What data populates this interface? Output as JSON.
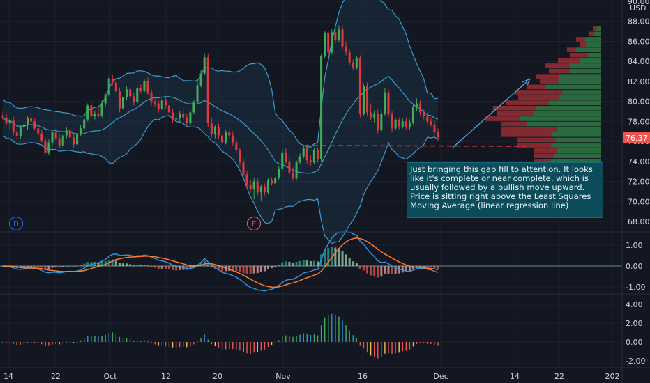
{
  "symbol_currency": "USD",
  "last_price_label": "76.37",
  "annotation_text": "Just bringing this gap fill to attention. It looks like it's complete or near complete, which is usually followed by a bullish move upward. Price is sitting right above the Least Squares Moving Average (linear regression line)",
  "badges": {
    "d": "D",
    "e": "E"
  },
  "colors": {
    "background": "#131722",
    "up": "#26a69a",
    "up_candle": "#3fae56",
    "down": "#ef5350",
    "down_candle": "#e0393c",
    "bands": "#3c9ccd",
    "macd": "#2f8fd9",
    "signal": "#ff7a2a",
    "annotation_bg": "#0b4b5a",
    "support_line": "#e53935",
    "arrow": "#4fb3e6"
  },
  "chart_data": [
    {
      "type": "candlestick",
      "title": "",
      "ylabel": "USD",
      "ylim": [
        67.5,
        90
      ],
      "y_ticks": [
        "68.00",
        "70.00",
        "72.00",
        "74.00",
        "76.00",
        "78.00",
        "80.00",
        "82.00",
        "84.00",
        "86.00",
        "88.00",
        "90.00"
      ],
      "x_ticks": [
        "14",
        "22",
        "Oct",
        "12",
        "20",
        "Nov",
        "16",
        "Dec",
        "14",
        "22",
        "202"
      ],
      "last_value": 76.37,
      "horizontal_level": 75.5,
      "candles": [
        [
          78.6,
          79.0,
          78.1,
          78.4
        ],
        [
          78.4,
          78.8,
          77.6,
          77.8
        ],
        [
          77.8,
          78.3,
          77.2,
          78.1
        ],
        [
          78.1,
          78.5,
          76.6,
          76.9
        ],
        [
          76.9,
          77.3,
          76.2,
          76.5
        ],
        [
          76.5,
          77.6,
          76.3,
          77.4
        ],
        [
          77.4,
          78.1,
          77.0,
          77.7
        ],
        [
          77.7,
          78.5,
          77.2,
          78.3
        ],
        [
          78.3,
          78.8,
          77.8,
          78.0
        ],
        [
          78.0,
          78.3,
          77.1,
          77.3
        ],
        [
          77.3,
          77.7,
          76.6,
          76.8
        ],
        [
          76.8,
          77.2,
          75.9,
          76.1
        ],
        [
          76.1,
          76.4,
          74.6,
          74.9
        ],
        [
          74.9,
          76.2,
          74.6,
          75.9
        ],
        [
          75.9,
          77.1,
          75.6,
          76.9
        ],
        [
          76.9,
          77.3,
          76.0,
          76.3
        ],
        [
          76.3,
          76.7,
          75.3,
          75.6
        ],
        [
          75.6,
          76.8,
          75.4,
          76.6
        ],
        [
          76.6,
          77.4,
          76.3,
          77.1
        ],
        [
          77.1,
          77.5,
          76.2,
          76.4
        ],
        [
          76.4,
          76.8,
          75.4,
          75.7
        ],
        [
          75.7,
          76.9,
          75.5,
          76.7
        ],
        [
          76.7,
          77.6,
          76.5,
          77.3
        ],
        [
          77.3,
          78.4,
          77.1,
          78.2
        ],
        [
          78.2,
          79.8,
          78.0,
          79.6
        ],
        [
          79.6,
          79.9,
          78.3,
          78.5
        ],
        [
          78.5,
          79.1,
          78.2,
          78.8
        ],
        [
          78.8,
          79.4,
          78.3,
          78.6
        ],
        [
          78.6,
          80.1,
          78.4,
          79.8
        ],
        [
          79.8,
          80.9,
          79.5,
          80.6
        ],
        [
          80.6,
          82.6,
          80.4,
          82.3
        ],
        [
          82.3,
          82.7,
          81.6,
          81.9
        ],
        [
          81.9,
          82.3,
          80.6,
          81.0
        ],
        [
          81.0,
          81.4,
          78.9,
          79.3
        ],
        [
          79.3,
          80.7,
          79.1,
          80.4
        ],
        [
          80.4,
          81.5,
          80.1,
          81.2
        ],
        [
          81.2,
          81.6,
          80.2,
          80.5
        ],
        [
          80.5,
          80.9,
          79.6,
          79.9
        ],
        [
          79.9,
          81.6,
          79.7,
          81.3
        ],
        [
          81.3,
          81.7,
          80.8,
          81.1
        ],
        [
          81.1,
          82.3,
          80.9,
          82.0
        ],
        [
          82.0,
          82.4,
          80.6,
          80.9
        ],
        [
          80.9,
          81.2,
          79.6,
          79.9
        ],
        [
          79.9,
          80.3,
          79.5,
          79.8
        ],
        [
          79.8,
          80.1,
          78.9,
          79.2
        ],
        [
          79.2,
          80.3,
          79.0,
          80.1
        ],
        [
          80.1,
          80.4,
          79.3,
          79.6
        ],
        [
          79.6,
          80.0,
          78.6,
          78.9
        ],
        [
          78.9,
          79.3,
          77.9,
          78.2
        ],
        [
          78.2,
          78.7,
          77.6,
          78.3
        ],
        [
          78.3,
          79.0,
          77.9,
          78.8
        ],
        [
          78.8,
          79.2,
          78.1,
          78.4
        ],
        [
          78.4,
          78.8,
          77.5,
          77.8
        ],
        [
          77.8,
          79.1,
          77.6,
          78.9
        ],
        [
          78.9,
          80.1,
          78.7,
          79.9
        ],
        [
          79.9,
          82.0,
          79.7,
          81.6
        ],
        [
          81.6,
          83.1,
          81.4,
          82.8
        ],
        [
          82.8,
          84.8,
          82.6,
          84.4
        ],
        [
          84.4,
          84.8,
          77.4,
          77.8
        ],
        [
          77.8,
          78.3,
          76.4,
          76.7
        ],
        [
          76.7,
          77.6,
          76.3,
          77.4
        ],
        [
          77.4,
          77.8,
          76.3,
          76.6
        ],
        [
          76.6,
          77.2,
          75.6,
          75.9
        ],
        [
          75.9,
          77.1,
          75.7,
          76.9
        ],
        [
          76.9,
          77.4,
          76.3,
          76.6
        ],
        [
          76.6,
          77.0,
          75.6,
          75.9
        ],
        [
          75.9,
          76.3,
          74.8,
          75.1
        ],
        [
          75.1,
          75.4,
          73.6,
          73.9
        ],
        [
          73.9,
          74.3,
          72.4,
          72.7
        ],
        [
          72.7,
          73.1,
          71.3,
          71.7
        ],
        [
          71.7,
          72.1,
          70.9,
          71.2
        ],
        [
          71.2,
          72.3,
          70.2,
          72.0
        ],
        [
          72.0,
          72.3,
          70.6,
          70.9
        ],
        [
          70.9,
          71.7,
          70.1,
          71.5
        ],
        [
          71.5,
          71.8,
          70.6,
          70.9
        ],
        [
          70.9,
          72.3,
          70.7,
          72.1
        ],
        [
          72.1,
          72.4,
          71.6,
          71.8
        ],
        [
          71.8,
          72.6,
          71.6,
          72.4
        ],
        [
          72.4,
          73.5,
          72.2,
          73.3
        ],
        [
          73.3,
          75.2,
          73.1,
          74.9
        ],
        [
          74.9,
          75.3,
          73.7,
          74.0
        ],
        [
          74.0,
          74.4,
          72.6,
          72.9
        ],
        [
          72.9,
          73.4,
          72.1,
          72.3
        ],
        [
          72.3,
          74.1,
          72.1,
          73.9
        ],
        [
          73.9,
          74.8,
          73.7,
          74.5
        ],
        [
          74.5,
          75.6,
          74.3,
          75.3
        ],
        [
          75.3,
          75.7,
          73.7,
          74.1
        ],
        [
          74.1,
          74.6,
          73.5,
          73.9
        ],
        [
          73.9,
          75.3,
          73.7,
          75.1
        ],
        [
          75.1,
          75.4,
          73.9,
          74.2
        ],
        [
          74.2,
          84.7,
          74.0,
          84.5
        ],
        [
          84.5,
          87.0,
          84.3,
          86.8
        ],
        [
          86.8,
          87.1,
          84.6,
          84.9
        ],
        [
          84.9,
          87.2,
          84.7,
          86.9
        ],
        [
          86.9,
          87.5,
          85.8,
          86.1
        ],
        [
          86.1,
          87.6,
          85.9,
          87.2
        ],
        [
          87.2,
          87.6,
          85.2,
          85.5
        ],
        [
          85.5,
          85.9,
          84.6,
          84.9
        ],
        [
          84.9,
          85.2,
          83.6,
          83.9
        ],
        [
          83.9,
          84.2,
          83.1,
          83.4
        ],
        [
          83.4,
          84.5,
          83.2,
          84.3
        ],
        [
          84.3,
          84.6,
          78.4,
          78.8
        ],
        [
          78.8,
          81.8,
          78.6,
          81.5
        ],
        [
          81.5,
          81.9,
          78.6,
          78.9
        ],
        [
          78.9,
          79.8,
          78.1,
          78.4
        ],
        [
          78.4,
          79.1,
          77.9,
          78.8
        ],
        [
          78.8,
          79.2,
          76.8,
          77.1
        ],
        [
          77.1,
          79.1,
          76.9,
          78.8
        ],
        [
          78.8,
          81.3,
          78.6,
          80.9
        ],
        [
          80.9,
          81.2,
          78.4,
          78.7
        ],
        [
          78.7,
          79.0,
          76.9,
          77.3
        ],
        [
          77.3,
          78.3,
          77.1,
          78.1
        ],
        [
          78.1,
          78.4,
          77.2,
          77.5
        ],
        [
          77.5,
          78.3,
          77.3,
          78.0
        ],
        [
          78.0,
          78.3,
          77.2,
          77.4
        ],
        [
          77.4,
          78.2,
          77.2,
          77.9
        ],
        [
          77.9,
          79.8,
          77.7,
          79.5
        ],
        [
          79.5,
          80.3,
          79.0,
          79.8
        ],
        [
          79.8,
          80.1,
          78.6,
          78.9
        ],
        [
          78.9,
          79.2,
          78.2,
          78.5
        ],
        [
          78.5,
          78.9,
          77.7,
          78.0
        ],
        [
          78.0,
          78.4,
          77.5,
          77.7
        ],
        [
          77.7,
          78.1,
          76.6,
          76.9
        ],
        [
          76.9,
          77.3,
          76.1,
          76.4
        ]
      ],
      "indicators": [
        "Bollinger Bands",
        "Least Squares Moving Average",
        "Volume Profile"
      ]
    },
    {
      "type": "macd",
      "title": "",
      "ylim": [
        -1.5,
        1.8
      ],
      "y_ticks": [
        "1.00",
        "0.00",
        "-1.00"
      ],
      "series": [
        "histogram",
        "macd",
        "signal"
      ]
    },
    {
      "type": "bar",
      "title": "",
      "ylim": [
        -2.5,
        5
      ],
      "y_ticks": [
        "4.00",
        "2.00",
        "0.00",
        "-2.00"
      ]
    }
  ]
}
